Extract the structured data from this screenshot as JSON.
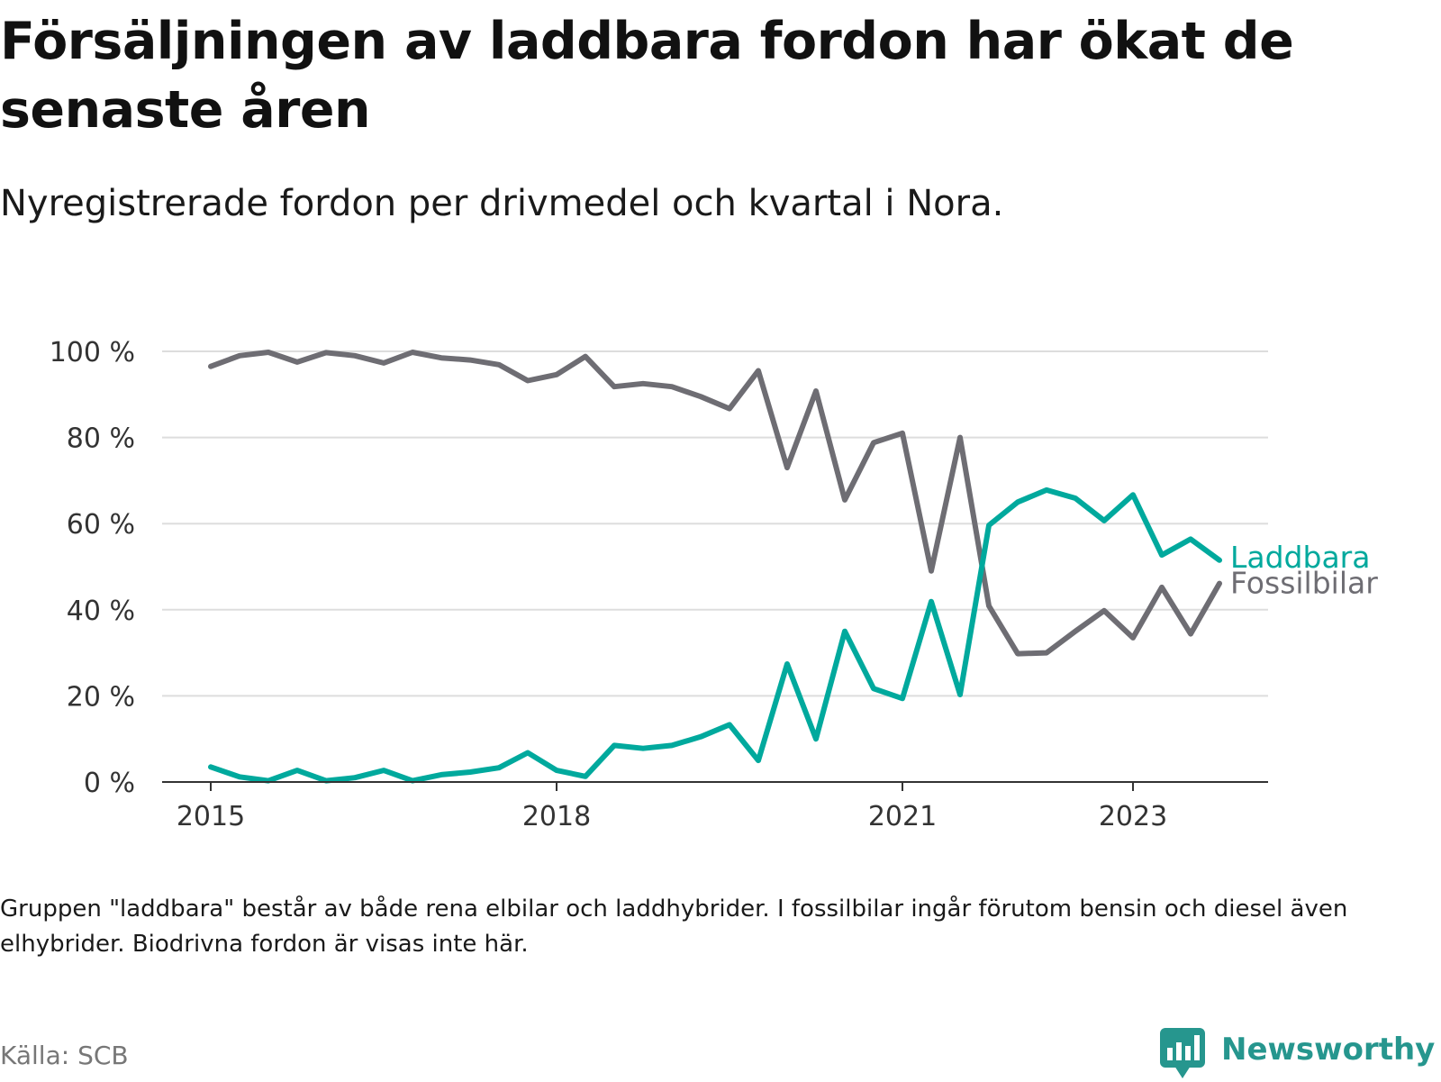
{
  "title": "Försäljningen av laddbara fordon har ökat de senaste åren",
  "subtitle": "Nyregistrerade fordon per drivmedel och kvartal i Nora.",
  "footnote": "Gruppen \"laddbara\" består av både rena elbilar och laddhybrider. I fossilbilar ingår förutom bensin och diesel även elhybrider. Biodrivna fordon är visas inte här.",
  "source": "Källa: SCB",
  "brand": {
    "name": "Newsworthy",
    "logo_icon": "newsworthy-logo-icon"
  },
  "colors": {
    "laddbara": "#00a99d",
    "fossilbilar": "#6e6d73",
    "grid": "#dddddd",
    "axis": "#333333",
    "brand": "#26968e"
  },
  "chart_data": {
    "type": "line",
    "title": "Försäljningen av laddbara fordon har ökat de senaste åren",
    "xlabel": "",
    "ylabel": "",
    "ylim": [
      0,
      100
    ],
    "yticks": [
      0,
      20,
      40,
      60,
      80,
      100
    ],
    "ytick_labels": [
      "0 %",
      "20 %",
      "40 %",
      "60 %",
      "80 %",
      "100 %"
    ],
    "xticks": [
      2015,
      2018,
      2021,
      2023
    ],
    "xtick_labels": [
      "2015",
      "2018",
      "2021",
      "2023"
    ],
    "x": [
      2015.0,
      2015.25,
      2015.5,
      2015.75,
      2016.0,
      2016.25,
      2016.5,
      2016.75,
      2017.0,
      2017.25,
      2017.5,
      2017.75,
      2018.0,
      2018.25,
      2018.5,
      2018.75,
      2019.0,
      2019.25,
      2019.5,
      2019.75,
      2020.0,
      2020.25,
      2020.5,
      2020.75,
      2021.0,
      2021.25,
      2021.5,
      2021.75,
      2022.0,
      2022.25,
      2022.5,
      2022.75,
      2023.0,
      2023.25,
      2023.5,
      2023.75
    ],
    "series": [
      {
        "name": "Laddbara",
        "color": "#00a99d",
        "values": [
          3.5,
          1.2,
          0.3,
          2.7,
          0.3,
          1.0,
          2.7,
          0.3,
          1.7,
          2.3,
          3.3,
          6.8,
          2.7,
          1.3,
          8.5,
          7.8,
          8.5,
          10.5,
          13.3,
          5.0,
          27.4,
          10.0,
          35.0,
          21.7,
          19.4,
          41.9,
          20.3,
          59.6,
          65.0,
          67.8,
          65.9,
          60.7,
          66.7,
          52.7,
          56.4,
          51.5
        ]
      },
      {
        "name": "Fossilbilar",
        "color": "#6e6d73",
        "values": [
          96.5,
          99.0,
          99.8,
          97.5,
          99.7,
          99.0,
          97.3,
          99.8,
          98.5,
          98.0,
          96.9,
          93.2,
          94.6,
          98.8,
          91.8,
          92.5,
          91.8,
          89.5,
          86.7,
          95.5,
          73.0,
          90.8,
          65.5,
          78.8,
          81.0,
          49.0,
          80.0,
          40.9,
          29.8,
          30.0,
          35.0,
          39.8,
          33.5,
          45.2,
          34.4,
          46.1
        ]
      }
    ],
    "end_labels": [
      "Laddbara",
      "Fossilbilar"
    ]
  }
}
